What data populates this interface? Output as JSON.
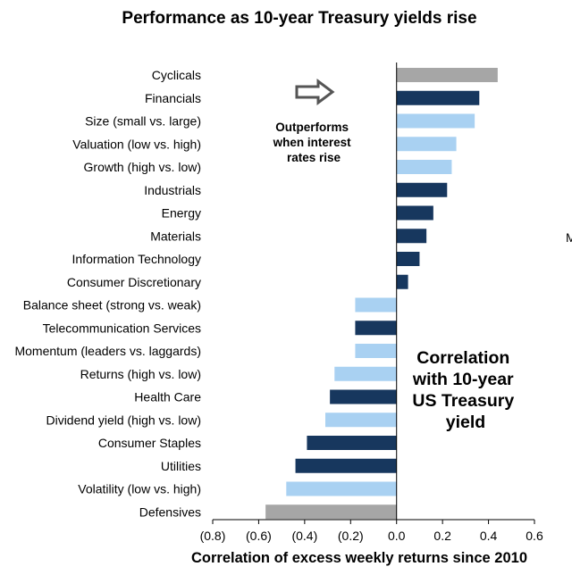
{
  "chart_data": {
    "type": "bar",
    "orientation": "horizontal",
    "title": "Performance as 10-year Treasury yields rise",
    "xlabel": "Correlation of excess weekly returns since 2010",
    "ylabel": "",
    "xlim": [
      -0.8,
      0.6
    ],
    "x_ticks": [
      "(0.8)",
      "(0.6)",
      "(0.4)",
      "(0.2)",
      "0.0",
      "0.2",
      "0.4",
      "0.6"
    ],
    "grid": false,
    "categories": [
      "Cyclicals",
      "Financials",
      "Size (small vs. large)",
      "Valuation (low vs. high)",
      "Growth (high vs. low)",
      "Industrials",
      "Energy",
      "Materials",
      "Information Technology",
      "Consumer Discretionary",
      "Balance sheet (strong vs. weak)",
      "Telecommunication Services",
      "Momentum (leaders vs. laggards)",
      "Returns (high vs. low)",
      "Health Care",
      "Dividend yield (high vs. low)",
      "Consumer Staples",
      "Utilities",
      "Volatility (low vs. high)",
      "Defensives"
    ],
    "values": [
      0.44,
      0.36,
      0.34,
      0.26,
      0.24,
      0.22,
      0.16,
      0.13,
      0.1,
      0.05,
      -0.18,
      -0.18,
      -0.18,
      -0.27,
      -0.29,
      -0.31,
      -0.39,
      -0.44,
      -0.48,
      -0.57
    ],
    "bar_groups": [
      "aggregate",
      "sector",
      "factor",
      "factor",
      "factor",
      "sector",
      "sector",
      "sector",
      "sector",
      "sector",
      "factor",
      "sector",
      "factor",
      "factor",
      "sector",
      "factor",
      "sector",
      "sector",
      "factor",
      "aggregate"
    ],
    "colors": {
      "aggregate": "#a6a6a6",
      "sector": "#17375e",
      "factor": "#a9d1f2",
      "axis": "#000000",
      "arrow": "#555555"
    },
    "annotations": {
      "outperforms": [
        "Outperforms",
        "when interest",
        "rates rise"
      ],
      "correlation": [
        "Correlation",
        "with 10-year",
        "US Treasury",
        "yield"
      ],
      "edge_glyph": "M"
    }
  }
}
